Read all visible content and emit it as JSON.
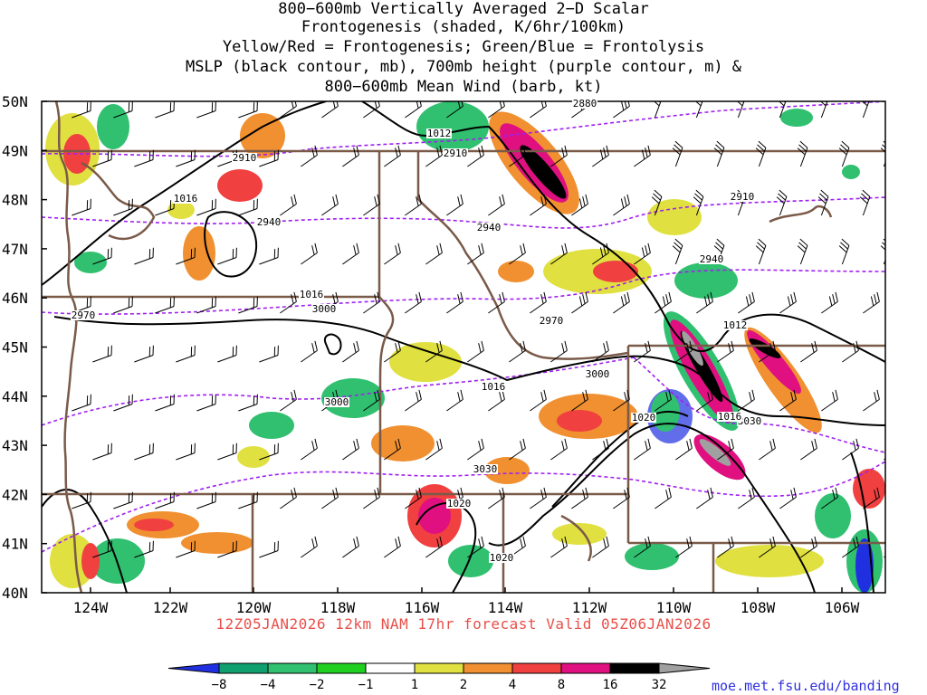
{
  "title": {
    "lines": [
      "800−600mb Vertically Averaged 2−D Scalar",
      "Frontogenesis (shaded, K/6hr/100km)",
      "Yellow/Red = Frontogenesis;  Green/Blue = Frontolysis",
      "MSLP (black contour, mb), 700mb height (purple contour, m) &",
      "800−600mb Mean Wind (barb, kt)"
    ]
  },
  "axes": {
    "lat_labels": [
      "50N",
      "49N",
      "48N",
      "47N",
      "46N",
      "45N",
      "44N",
      "43N",
      "42N",
      "41N",
      "40N"
    ],
    "lon_labels": [
      "124W",
      "122W",
      "120W",
      "118W",
      "116W",
      "114W",
      "112W",
      "110W",
      "108W",
      "106W"
    ]
  },
  "contour_labels": {
    "height": [
      "2880",
      "2910",
      "2910",
      "2910",
      "2940",
      "2940",
      "2940",
      "2970",
      "2970",
      "3000",
      "3000",
      "3000",
      "3030",
      "3030"
    ],
    "pressure": [
      "1012",
      "1016",
      "1016",
      "1016",
      "1012",
      "1016",
      "1020",
      "1020",
      "1020"
    ]
  },
  "footer": {
    "forecast": "12Z05JAN2026 12km NAM 17hr forecast Valid 05Z06JAN2026",
    "credit": "moe.met.fsu.edu/banding"
  },
  "colorbar": {
    "labels": [
      "−8",
      "−4",
      "−2",
      "−1",
      "1",
      "2",
      "4",
      "8",
      "16",
      "32"
    ],
    "colors": [
      "#2030e0",
      "#10a070",
      "#30c070",
      "#20d020",
      "#ffffff",
      "#e0e040",
      "#f09030",
      "#f04040",
      "#e01080",
      "#000000",
      "#a0a0a0"
    ]
  },
  "colors": {
    "height_contour": "#a020f0",
    "pressure_contour": "#000000",
    "border": "#7a5a48"
  }
}
